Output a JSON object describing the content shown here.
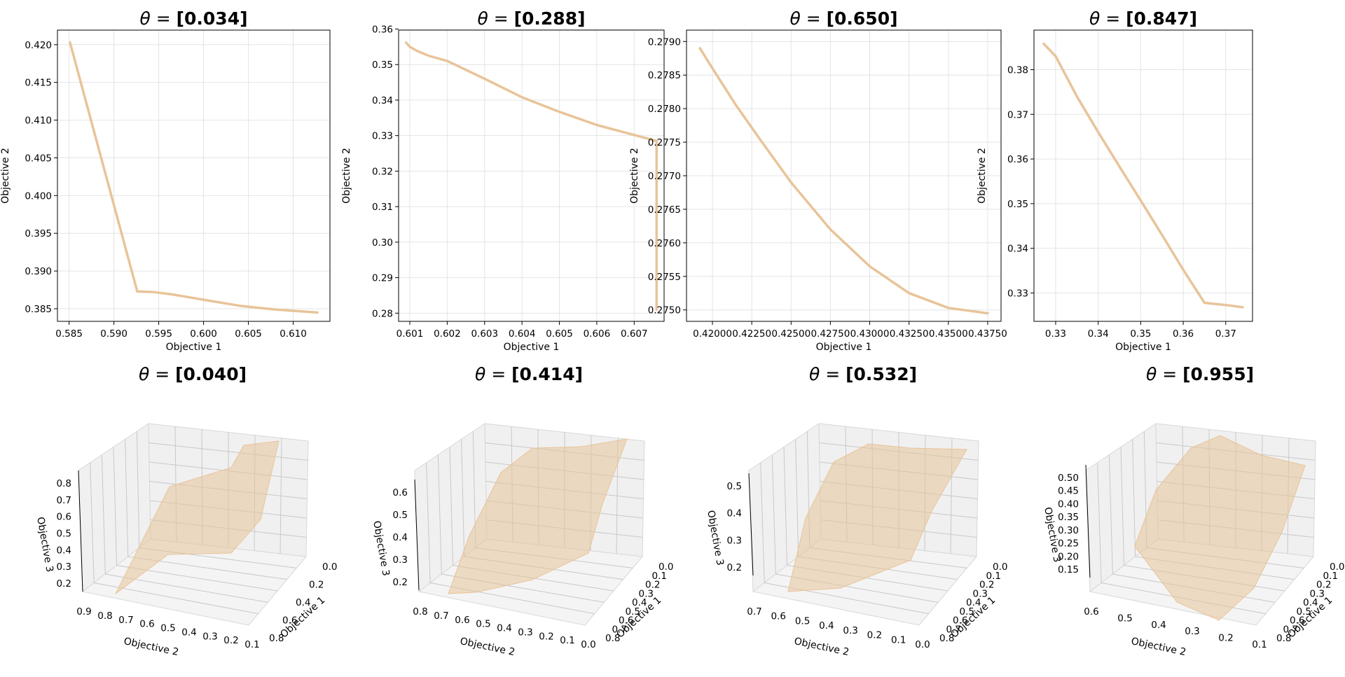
{
  "line_color": "#e8c49a",
  "surface_color": "#e8c49a",
  "chart_data": [
    {
      "type": "line",
      "title_prefix": "θ = ",
      "title_value": "[0.034]",
      "xlabel": "Objective 1",
      "ylabel": "Objective 2",
      "xlim": [
        0.5837,
        0.6141
      ],
      "ylim": [
        0.38333,
        0.42193
      ],
      "xticks": [
        0.585,
        0.59,
        0.595,
        0.6,
        0.605,
        0.61
      ],
      "xtick_labels": [
        "0.585",
        "0.590",
        "0.595",
        "0.600",
        "0.605",
        "0.610"
      ],
      "yticks": [
        0.385,
        0.39,
        0.395,
        0.4,
        0.405,
        0.41,
        0.415,
        0.42
      ],
      "ytick_labels": [
        "0.385",
        "0.390",
        "0.395",
        "0.400",
        "0.405",
        "0.410",
        "0.415",
        "0.420"
      ],
      "x": [
        0.5851,
        0.5926,
        0.5945,
        0.5965,
        0.6,
        0.604,
        0.608,
        0.6127
      ],
      "y": [
        0.4203,
        0.3873,
        0.3872,
        0.3869,
        0.3862,
        0.3854,
        0.3849,
        0.3845
      ]
    },
    {
      "type": "line",
      "title_prefix": "θ = ",
      "title_value": "[0.288]",
      "xlabel": "Objective 1",
      "ylabel": "Objective 2",
      "xlim": [
        0.6007,
        0.6078
      ],
      "ylim": [
        0.2777,
        0.3597
      ],
      "xticks": [
        0.601,
        0.602,
        0.603,
        0.604,
        0.605,
        0.606,
        0.607
      ],
      "xtick_labels": [
        "0.601",
        "0.602",
        "0.603",
        "0.604",
        "0.605",
        "0.606",
        "0.607"
      ],
      "yticks": [
        0.28,
        0.29,
        0.3,
        0.31,
        0.32,
        0.33,
        0.34,
        0.35,
        0.36
      ],
      "ytick_labels": [
        "0.28",
        "0.29",
        "0.30",
        "0.31",
        "0.32",
        "0.33",
        "0.34",
        "0.35",
        "0.36"
      ],
      "x": [
        0.6009,
        0.601,
        0.6012,
        0.6015,
        0.602,
        0.603,
        0.604,
        0.605,
        0.606,
        0.6076,
        0.6076
      ],
      "y": [
        0.3562,
        0.355,
        0.3538,
        0.3525,
        0.351,
        0.346,
        0.3408,
        0.3367,
        0.333,
        0.3285,
        0.281
      ]
    },
    {
      "type": "line",
      "title_prefix": "θ = ",
      "title_value": "[0.650]",
      "xlabel": "Objective 1",
      "ylabel": "Objective 2",
      "xlim": [
        0.41835,
        0.43835
      ],
      "ylim": [
        0.27483,
        0.27917
      ],
      "xticks": [
        0.42,
        0.4225,
        0.425,
        0.4275,
        0.43,
        0.4325,
        0.435,
        0.4375
      ],
      "xtick_labels": [
        "0.42000",
        "0.42250",
        "0.42500",
        "0.42750",
        "0.43000",
        "0.43250",
        "0.43500",
        "0.43750"
      ],
      "yticks": [
        0.275,
        0.2755,
        0.276,
        0.2765,
        0.277,
        0.2775,
        0.278,
        0.2785,
        0.279
      ],
      "ytick_labels": [
        "0.2750",
        "0.2755",
        "0.2760",
        "0.2765",
        "0.2770",
        "0.2775",
        "0.2780",
        "0.2785",
        "0.2790"
      ],
      "x": [
        0.4192,
        0.42,
        0.4215,
        0.423,
        0.425,
        0.4275,
        0.43,
        0.4325,
        0.435,
        0.4375
      ],
      "y": [
        0.2789,
        0.2786,
        0.27805,
        0.27755,
        0.2769,
        0.2762,
        0.27565,
        0.27525,
        0.27503,
        0.27495
      ]
    },
    {
      "type": "line",
      "title_prefix": "θ = ",
      "title_value": "[0.847]",
      "xlabel": "Objective 1",
      "ylabel": "Objective 2",
      "xlim": [
        0.3249,
        0.3763
      ],
      "ylim": [
        0.32364,
        0.38886
      ],
      "xticks": [
        0.33,
        0.34,
        0.35,
        0.36,
        0.37
      ],
      "xtick_labels": [
        "0.33",
        "0.34",
        "0.35",
        "0.36",
        "0.37"
      ],
      "yticks": [
        0.33,
        0.34,
        0.35,
        0.36,
        0.37,
        0.38
      ],
      "ytick_labels": [
        "0.33",
        "0.34",
        "0.35",
        "0.36",
        "0.37",
        "0.38"
      ],
      "x": [
        0.3272,
        0.33,
        0.335,
        0.34,
        0.345,
        0.35,
        0.355,
        0.36,
        0.365,
        0.37,
        0.374
      ],
      "y": [
        0.3858,
        0.383,
        0.374,
        0.366,
        0.3583,
        0.3507,
        0.343,
        0.3352,
        0.3278,
        0.3273,
        0.3268
      ]
    },
    {
      "type": "surface3d",
      "title_prefix": "θ = ",
      "title_value": "[0.040]",
      "xlabel": "Objective 1",
      "ylabel": "Objective 2",
      "zlabel": "Objective 3",
      "xticks": [
        "0.0",
        "0.2",
        "0.4",
        "0.6",
        "0.8"
      ],
      "yticks": [
        "0.9",
        "0.8",
        "0.7",
        "0.6",
        "0.5",
        "0.4",
        "0.3",
        "0.2",
        "0.1"
      ],
      "zticks": [
        "0.8",
        "0.7",
        "0.6",
        "0.5",
        "0.4",
        "0.3",
        "0.2"
      ]
    },
    {
      "type": "surface3d",
      "title_prefix": "θ = ",
      "title_value": "[0.414]",
      "xlabel": "Objective 1",
      "ylabel": "Objective 2",
      "zlabel": "Objective 3",
      "xticks": [
        "0.0",
        "0.1",
        "0.2",
        "0.3",
        "0.4",
        "0.5",
        "0.6",
        "0.7",
        "0.8"
      ],
      "yticks": [
        "0.8",
        "0.7",
        "0.6",
        "0.5",
        "0.4",
        "0.3",
        "0.2",
        "0.1",
        "0.0"
      ],
      "zticks": [
        "0.6",
        "0.5",
        "0.4",
        "0.3",
        "0.2"
      ]
    },
    {
      "type": "surface3d",
      "title_prefix": "θ = ",
      "title_value": "[0.532]",
      "xlabel": "Objective 1",
      "ylabel": "Objective 2",
      "zlabel": "Objective 3",
      "xticks": [
        "0.0",
        "0.1",
        "0.2",
        "0.3",
        "0.4",
        "0.5",
        "0.6",
        "0.7",
        "0.8"
      ],
      "yticks": [
        "0.7",
        "0.6",
        "0.5",
        "0.4",
        "0.3",
        "0.2",
        "0.1",
        "0.0"
      ],
      "zticks": [
        "0.5",
        "0.4",
        "0.3",
        "0.2"
      ]
    },
    {
      "type": "surface3d",
      "title_prefix": "θ = ",
      "title_value": "[0.955]",
      "xlabel": "Objective 1",
      "ylabel": "Objective 2",
      "zlabel": "Objective 3",
      "xticks": [
        "0.0",
        "0.1",
        "0.2",
        "0.3",
        "0.4",
        "0.5",
        "0.6",
        "0.7",
        "0.8"
      ],
      "yticks": [
        "0.6",
        "0.5",
        "0.4",
        "0.3",
        "0.2",
        "0.1"
      ],
      "zticks": [
        "0.50",
        "0.45",
        "0.40",
        "0.35",
        "0.30",
        "0.25",
        "0.20",
        "0.15"
      ]
    }
  ]
}
